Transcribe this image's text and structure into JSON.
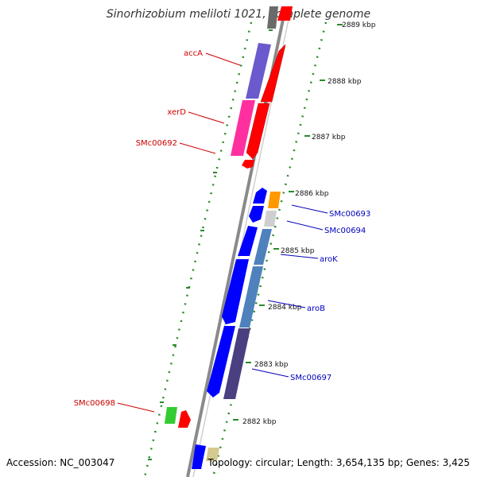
{
  "title": "Sinorhizobium meliloti 1021, complete genome",
  "footer": {
    "accession": "Accession: NC_003047",
    "topology": "Topology: circular; Length: 3,654,135 bp; Genes: 3,425"
  },
  "colors": {
    "backbone": "#8a8a8a",
    "ruler": "#2a8a2a",
    "forward_label": "#cc0000",
    "reverse_label": "#0000bb"
  },
  "ruler_labels": [
    {
      "id": "2889",
      "text": "2889 kbp"
    },
    {
      "id": "2888",
      "text": "2888 kbp"
    },
    {
      "id": "2887",
      "text": "2887 kbp"
    },
    {
      "id": "2886",
      "text": "2886 kbp"
    },
    {
      "id": "2885",
      "text": "2885 kbp"
    },
    {
      "id": "2884",
      "text": "2884 kbp"
    },
    {
      "id": "2883",
      "text": "2883 kbp"
    },
    {
      "id": "2882",
      "text": "2882 kbp"
    }
  ],
  "gene_labels": [
    {
      "id": "accA",
      "text": "accA",
      "strand": "forward"
    },
    {
      "id": "xerD",
      "text": "xerD",
      "strand": "forward"
    },
    {
      "id": "SMc00692",
      "text": "SMc00692",
      "strand": "forward"
    },
    {
      "id": "SMc00693",
      "text": "SMc00693",
      "strand": "reverse"
    },
    {
      "id": "SMc00694",
      "text": "SMc00694",
      "strand": "reverse"
    },
    {
      "id": "aroK",
      "text": "aroK",
      "strand": "reverse"
    },
    {
      "id": "aroB",
      "text": "aroB",
      "strand": "reverse"
    },
    {
      "id": "SMc00697",
      "text": "SMc00697",
      "strand": "reverse"
    },
    {
      "id": "SMc00698",
      "text": "SMc00698",
      "strand": "forward"
    }
  ]
}
